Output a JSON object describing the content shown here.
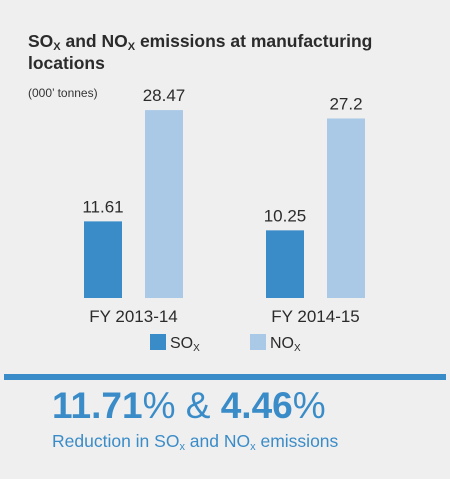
{
  "colors": {
    "sox": "#3a8cc8",
    "nox": "#a9c9e6",
    "accent": "#3a8cc8",
    "background": "#efefef",
    "text": "#2b2b2b"
  },
  "title_parts": {
    "sox_base": "SO",
    "sox_sub": "X",
    "mid": " and NO",
    "nox_sub": "X",
    "end": " emissions at manufacturing locations"
  },
  "unit": "(000’ tonnes)",
  "chart_data": {
    "type": "bar",
    "title": "SOX and NOX emissions at manufacturing locations",
    "ylabel": "(000’ tonnes)",
    "categories": [
      "FY 2013-14",
      "FY 2014-15"
    ],
    "series": [
      {
        "name": "SOX",
        "legend_base": "SO",
        "legend_sub": "X",
        "values": [
          11.61,
          10.25
        ],
        "labels": [
          "11.61",
          "10.25"
        ]
      },
      {
        "name": "NOX",
        "legend_base": "NO",
        "legend_sub": "X",
        "values": [
          28.47,
          27.2
        ],
        "labels": [
          "28.47",
          "27.2"
        ]
      }
    ],
    "ylim": [
      0,
      30
    ],
    "grid": false,
    "legend": "bottom-center"
  },
  "summary": {
    "sox_pct": "11.71",
    "pct_sign_1": "%",
    "amp": " & ",
    "nox_pct": "4.46",
    "pct_sign_2": "%",
    "caption_1": "Reduction in SO",
    "caption_sub_1": "x",
    "caption_2": " and NO",
    "caption_sub_2": "x",
    "caption_3": " emissions"
  }
}
